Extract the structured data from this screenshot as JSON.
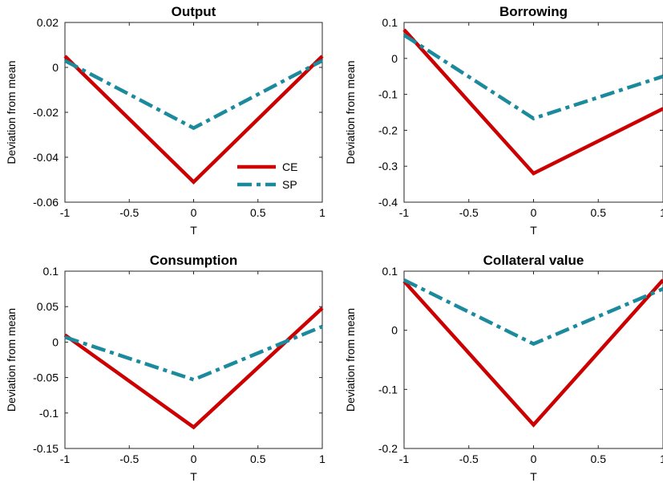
{
  "colors": {
    "CE": "#cc0000",
    "SP": "#1a8a9c"
  },
  "chart_data": [
    {
      "type": "line",
      "title": "Output",
      "xlabel": "T",
      "ylabel": "Deviation from mean",
      "xlim": [
        -1,
        1
      ],
      "ylim": [
        -0.06,
        0.02
      ],
      "xticks": [
        -1,
        -0.5,
        0,
        0.5,
        1
      ],
      "xtick_labels": [
        "-1",
        "-0.5",
        "0",
        "0.5",
        "1"
      ],
      "yticks": [
        -0.06,
        -0.04,
        -0.02,
        0,
        0.02
      ],
      "ytick_labels": [
        "-0.06",
        "-0.04",
        "-0.02",
        "0",
        "0.02"
      ],
      "x": [
        -1,
        0,
        1
      ],
      "series": [
        {
          "name": "CE",
          "values": [
            0.005,
            -0.051,
            0.005
          ]
        },
        {
          "name": "SP",
          "values": [
            0.003,
            -0.027,
            0.003
          ]
        }
      ],
      "legend": "bottom-right"
    },
    {
      "type": "line",
      "title": "Borrowing",
      "xlabel": "T",
      "ylabel": "Deviation from mean",
      "xlim": [
        -1,
        1
      ],
      "ylim": [
        -0.4,
        0.1
      ],
      "xticks": [
        -1,
        -0.5,
        0,
        0.5,
        1
      ],
      "xtick_labels": [
        "-1",
        "-0.5",
        "0",
        "0.5",
        "1"
      ],
      "yticks": [
        -0.4,
        -0.3,
        -0.2,
        -0.1,
        0,
        0.1
      ],
      "ytick_labels": [
        "-0.4",
        "-0.3",
        "-0.2",
        "-0.1",
        "0",
        "0.1"
      ],
      "x": [
        -1,
        0,
        1
      ],
      "series": [
        {
          "name": "CE",
          "values": [
            0.08,
            -0.32,
            -0.14
          ]
        },
        {
          "name": "SP",
          "values": [
            0.065,
            -0.167,
            -0.05
          ]
        }
      ]
    },
    {
      "type": "line",
      "title": "Consumption",
      "xlabel": "T",
      "ylabel": "Deviation from mean",
      "xlim": [
        -1,
        1
      ],
      "ylim": [
        -0.15,
        0.1
      ],
      "xticks": [
        -1,
        -0.5,
        0,
        0.5,
        1
      ],
      "xtick_labels": [
        "-1",
        "-0.5",
        "0",
        "0.5",
        "1"
      ],
      "yticks": [
        -0.15,
        -0.1,
        -0.05,
        0,
        0.05,
        0.1
      ],
      "ytick_labels": [
        "-0.15",
        "-0.1",
        "-0.05",
        "0",
        "0.05",
        "0.1"
      ],
      "x": [
        -1,
        0,
        1
      ],
      "series": [
        {
          "name": "CE",
          "values": [
            0.01,
            -0.12,
            0.048
          ]
        },
        {
          "name": "SP",
          "values": [
            0.007,
            -0.053,
            0.022
          ]
        }
      ]
    },
    {
      "type": "line",
      "title": "Collateral value",
      "xlabel": "T",
      "ylabel": "Deviation from mean",
      "xlim": [
        -1,
        1
      ],
      "ylim": [
        -0.2,
        0.1
      ],
      "xticks": [
        -1,
        -0.5,
        0,
        0.5,
        1
      ],
      "xtick_labels": [
        "-1",
        "-0.5",
        "0",
        "0.5",
        "1"
      ],
      "yticks": [
        -0.2,
        -0.1,
        0,
        0.1
      ],
      "ytick_labels": [
        "-0.2",
        "-0.1",
        "0",
        "0.1"
      ],
      "x": [
        -1,
        0,
        1
      ],
      "series": [
        {
          "name": "CE",
          "values": [
            0.083,
            -0.16,
            0.085
          ]
        },
        {
          "name": "SP",
          "values": [
            0.085,
            -0.023,
            0.07
          ]
        }
      ]
    }
  ]
}
